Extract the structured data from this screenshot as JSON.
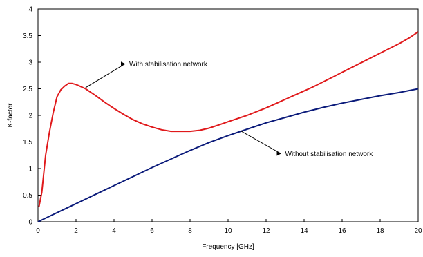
{
  "chart_data": {
    "type": "line",
    "title": "",
    "xlabel": "Frequency [GHz]",
    "ylabel": "K-factor",
    "xlim": [
      0,
      20
    ],
    "ylim": [
      0,
      4
    ],
    "xticks": [
      "0",
      "2",
      "4",
      "6",
      "8",
      "10",
      "12",
      "14",
      "16",
      "18",
      "20"
    ],
    "yticks": [
      "0",
      "0.5",
      "1",
      "1.5",
      "2",
      "2.5",
      "3",
      "3.5",
      "4"
    ],
    "grid": false,
    "legend": "none",
    "series": [
      {
        "color": "#e0191b",
        "x": [
          0.05,
          0.2,
          0.4,
          0.6,
          0.8,
          1.0,
          1.2,
          1.4,
          1.6,
          1.8,
          2.0,
          2.2,
          2.5,
          3.0,
          3.5,
          4.0,
          4.5,
          5.0,
          5.5,
          6.0,
          6.5,
          7.0,
          7.5,
          8.0,
          8.5,
          9.0,
          9.5,
          10.0,
          10.5,
          11.0,
          11.5,
          12.0,
          12.5,
          13.0,
          13.5,
          14.0,
          14.5,
          15.0,
          15.5,
          16.0,
          16.5,
          17.0,
          17.5,
          18.0,
          18.5,
          19.0,
          19.5,
          20.0
        ],
        "y": [
          0.28,
          0.55,
          1.25,
          1.68,
          2.05,
          2.35,
          2.48,
          2.55,
          2.6,
          2.6,
          2.58,
          2.55,
          2.5,
          2.38,
          2.25,
          2.13,
          2.02,
          1.92,
          1.84,
          1.78,
          1.73,
          1.7,
          1.7,
          1.7,
          1.72,
          1.76,
          1.82,
          1.88,
          1.94,
          2.0,
          2.07,
          2.14,
          2.22,
          2.3,
          2.38,
          2.46,
          2.54,
          2.63,
          2.72,
          2.81,
          2.9,
          2.99,
          3.08,
          3.17,
          3.26,
          3.35,
          3.45,
          3.57
        ]
      },
      {
        "color": "#0a1a7a",
        "x": [
          0.0,
          1.0,
          2.0,
          3.0,
          4.0,
          5.0,
          6.0,
          7.0,
          8.0,
          9.0,
          10.0,
          11.0,
          12.0,
          13.0,
          14.0,
          15.0,
          16.0,
          17.0,
          18.0,
          19.0,
          20.0
        ],
        "y": [
          0.0,
          0.17,
          0.34,
          0.51,
          0.68,
          0.85,
          1.02,
          1.18,
          1.34,
          1.49,
          1.62,
          1.74,
          1.86,
          1.96,
          2.06,
          2.15,
          2.23,
          2.3,
          2.37,
          2.43,
          2.5
        ]
      }
    ],
    "annotations": [
      {
        "text": "With stabilisation network",
        "point": [
          2.5,
          2.52
        ],
        "label_at": [
          4.8,
          2.97
        ]
      },
      {
        "text": "Without stabilisation network",
        "point": [
          10.7,
          1.7
        ],
        "label_at": [
          13.0,
          1.28
        ]
      }
    ]
  }
}
